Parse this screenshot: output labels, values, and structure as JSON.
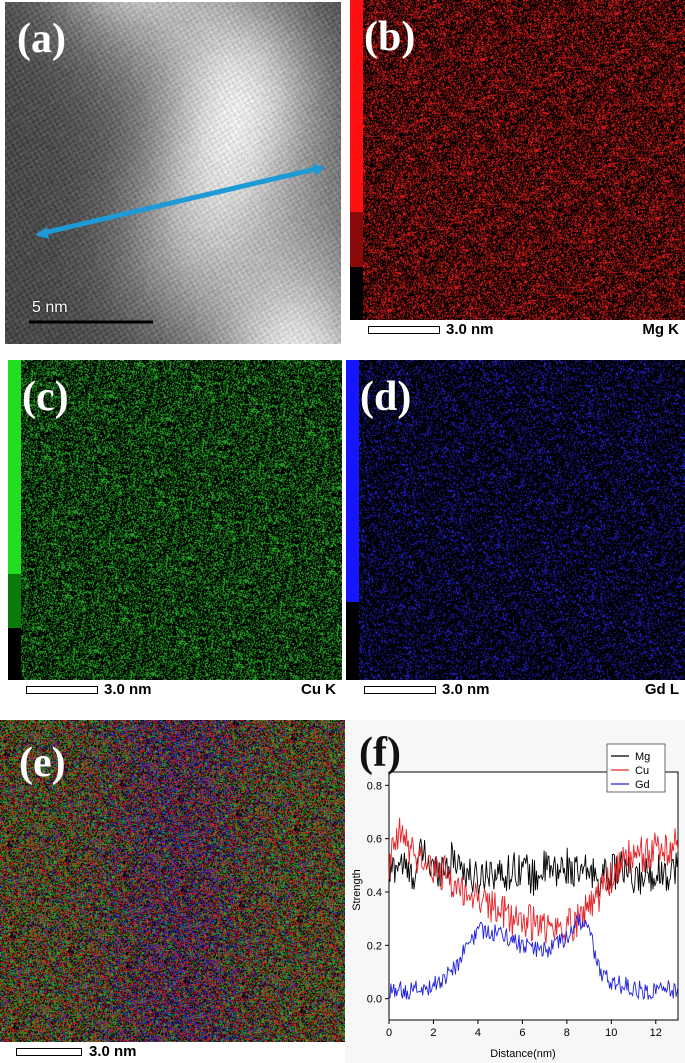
{
  "panels": {
    "a": {
      "label": "(a)",
      "scalebar": "5  nm"
    },
    "b": {
      "label": "(b)",
      "scalebar": "3.0 nm",
      "element": "Mg K",
      "color": "#ff2020"
    },
    "c": {
      "label": "(c)",
      "scalebar": "3.0 nm",
      "element": "Cu K",
      "color": "#2ecc2e"
    },
    "d": {
      "label": "(d)",
      "scalebar": "3.0 nm",
      "element": "Gd L",
      "color": "#2a2aff"
    },
    "e": {
      "label": "(e)",
      "scalebar": "3.0 nm"
    },
    "f": {
      "label": "(f)"
    }
  },
  "line_scan_arrow_color": "#1e9ad6",
  "chart_data": {
    "type": "line",
    "xlabel": "Distance(nm)",
    "ylabel": "Strength",
    "xlim": [
      0,
      13
    ],
    "ylim": [
      -0.08,
      0.85
    ],
    "xticks": [
      "0",
      "2",
      "4",
      "6",
      "8",
      "10",
      "12"
    ],
    "yticks": [
      "0.0",
      "0.2",
      "0.4",
      "0.6",
      "0.8"
    ],
    "legend_position": "top-right",
    "x": [
      0,
      0.5,
      1,
      1.5,
      2,
      2.5,
      3,
      3.5,
      4,
      4.5,
      5,
      5.5,
      6,
      6.5,
      7,
      7.5,
      8,
      8.5,
      9,
      9.5,
      10,
      10.5,
      11,
      11.5,
      12,
      12.5,
      13
    ],
    "series": [
      {
        "name": "Mg",
        "color": "#000000",
        "values": [
          0.47,
          0.52,
          0.45,
          0.55,
          0.48,
          0.5,
          0.53,
          0.47,
          0.44,
          0.49,
          0.46,
          0.48,
          0.5,
          0.45,
          0.49,
          0.47,
          0.5,
          0.46,
          0.48,
          0.45,
          0.47,
          0.49,
          0.44,
          0.46,
          0.48,
          0.47,
          0.5
        ]
      },
      {
        "name": "Cu",
        "color": "#e8242a",
        "values": [
          0.5,
          0.62,
          0.55,
          0.52,
          0.48,
          0.47,
          0.42,
          0.4,
          0.38,
          0.35,
          0.33,
          0.3,
          0.3,
          0.28,
          0.27,
          0.26,
          0.27,
          0.3,
          0.35,
          0.4,
          0.45,
          0.5,
          0.55,
          0.54,
          0.56,
          0.55,
          0.58
        ]
      },
      {
        "name": "Gd",
        "color": "#2222e0",
        "values": [
          0.02,
          0.03,
          0.03,
          0.04,
          0.05,
          0.08,
          0.12,
          0.2,
          0.25,
          0.26,
          0.24,
          0.22,
          0.2,
          0.19,
          0.18,
          0.2,
          0.22,
          0.3,
          0.25,
          0.1,
          0.06,
          0.05,
          0.04,
          0.03,
          0.03,
          0.04,
          0.03
        ]
      }
    ]
  }
}
